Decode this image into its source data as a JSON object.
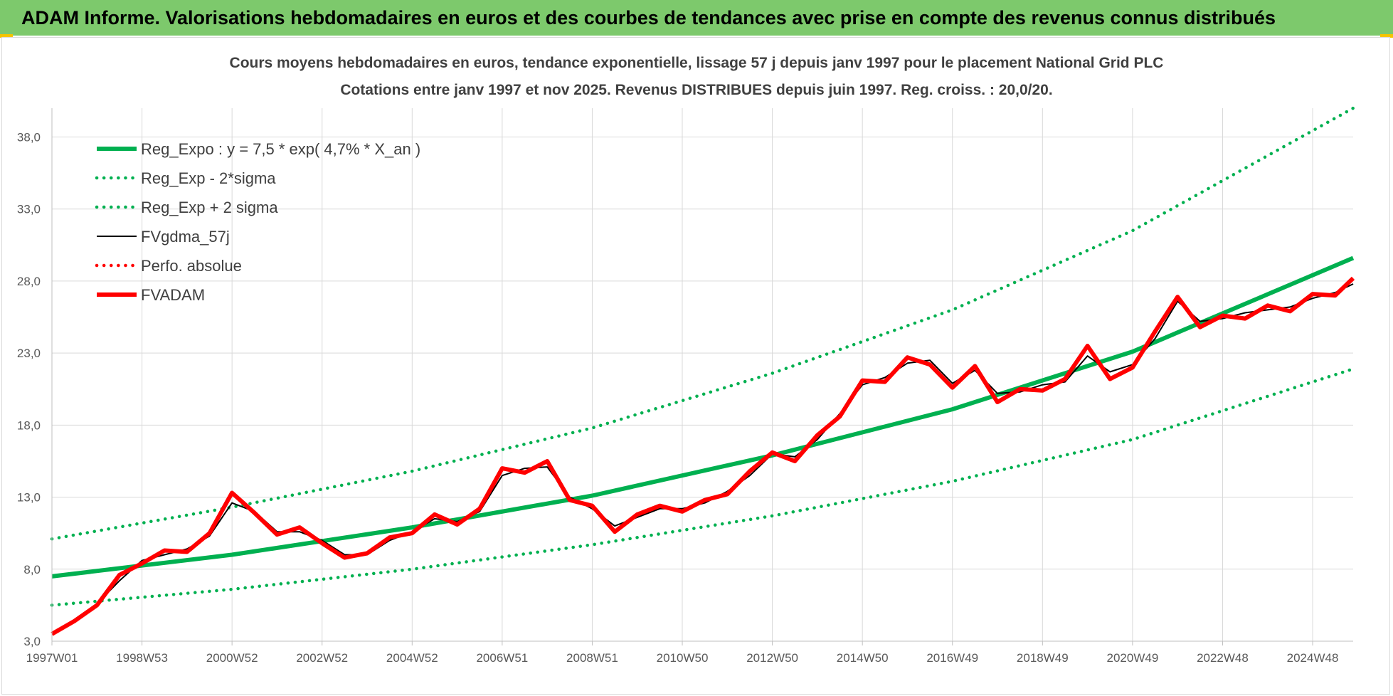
{
  "banner": {
    "title": "ADAM Informe. Valorisations hebdomadaires en euros et des courbes de tendances avec prise en compte des revenus connus distribués"
  },
  "colors": {
    "banner_bg": "#7dc96c",
    "trend_green": "#00b050",
    "fv_black": "#000000",
    "fvadam_red": "#ff0000",
    "gridline": "#d9d9d9",
    "axis_text": "#595959",
    "corner_accent": "#f5c400"
  },
  "chart_data": {
    "type": "line",
    "title": "Cours moyens hebdomadaires en euros, tendance exponentielle, lissage 57 j depuis janv 1997 pour le placement National Grid PLC",
    "subtitle": "Cotations entre janv 1997 et nov 2025. Revenus DISTRIBUES depuis juin 1997. Reg. croiss. : 20,0/20.",
    "xlabel": "",
    "ylabel": "",
    "x_range": [
      1997.0,
      2025.9
    ],
    "ylim": [
      3.0,
      40.0
    ],
    "y_ticks": [
      "3,0",
      "8,0",
      "13,0",
      "18,0",
      "23,0",
      "28,0",
      "33,0",
      "38,0"
    ],
    "y_tick_values": [
      3,
      8,
      13,
      18,
      23,
      28,
      33,
      38
    ],
    "x_tick_labels": [
      "1997W01",
      "1998W53",
      "2000W52",
      "2002W52",
      "2004W52",
      "2006W51",
      "2008W51",
      "2010W50",
      "2012W50",
      "2014W50",
      "2016W49",
      "2018W49",
      "2020W49",
      "2022W48",
      "2024W48"
    ],
    "x_tick_years": [
      1997.0,
      1999.0,
      2001.0,
      2003.0,
      2005.0,
      2007.0,
      2009.0,
      2011.0,
      2013.0,
      2015.0,
      2017.0,
      2019.0,
      2021.0,
      2023.0,
      2025.0
    ],
    "grid": true,
    "legend_position": "top-left",
    "series": [
      {
        "name": "Reg_Expo : y = 7,5 * exp( 4,7% *  X_an )",
        "style": "solid-thick",
        "color": "#00b050",
        "x": [
          1997.0,
          2001.0,
          2005.0,
          2009.0,
          2013.0,
          2017.0,
          2021.0,
          2025.9
        ],
        "values": [
          7.5,
          9.0,
          10.9,
          13.1,
          15.9,
          19.1,
          23.1,
          29.6
        ]
      },
      {
        "name": "Reg_Exp - 2*sigma",
        "style": "dotted",
        "color": "#00b050",
        "x": [
          1997.0,
          2001.0,
          2005.0,
          2009.0,
          2013.0,
          2017.0,
          2021.0,
          2025.9
        ],
        "values": [
          5.5,
          6.6,
          8.0,
          9.7,
          11.7,
          14.1,
          17.0,
          21.9
        ]
      },
      {
        "name": "Reg_Exp + 2 sigma",
        "style": "dotted",
        "color": "#00b050",
        "x": [
          1997.0,
          2001.0,
          2005.0,
          2009.0,
          2013.0,
          2017.0,
          2021.0,
          2025.9
        ],
        "values": [
          10.1,
          12.3,
          14.8,
          17.8,
          21.6,
          26.0,
          31.5,
          40.0
        ]
      },
      {
        "name": "FVgdma_57j",
        "style": "solid-thin",
        "color": "#000000",
        "x": [
          1997.0,
          1997.5,
          1998.0,
          1998.5,
          1999.0,
          1999.5,
          2000.0,
          2000.5,
          2001.0,
          2001.5,
          2002.0,
          2002.5,
          2003.0,
          2003.5,
          2004.0,
          2004.5,
          2005.0,
          2005.5,
          2006.0,
          2006.5,
          2007.0,
          2007.5,
          2008.0,
          2008.5,
          2009.0,
          2009.5,
          2010.0,
          2010.5,
          2011.0,
          2011.5,
          2012.0,
          2012.5,
          2013.0,
          2013.5,
          2014.0,
          2014.5,
          2015.0,
          2015.5,
          2016.0,
          2016.5,
          2017.0,
          2017.5,
          2018.0,
          2018.5,
          2019.0,
          2019.5,
          2020.0,
          2020.5,
          2021.0,
          2021.5,
          2022.0,
          2022.5,
          2023.0,
          2023.5,
          2024.0,
          2024.5,
          2025.0,
          2025.5,
          2025.9
        ],
        "values": [
          3.6,
          4.3,
          5.6,
          7.2,
          8.6,
          9.0,
          9.4,
          10.3,
          12.6,
          12.0,
          10.6,
          10.6,
          10.0,
          9.0,
          9.0,
          10.0,
          10.6,
          11.5,
          11.3,
          12.0,
          14.5,
          15.0,
          15.1,
          13.0,
          12.2,
          11.0,
          11.6,
          12.2,
          12.2,
          12.6,
          13.4,
          14.5,
          16.0,
          15.8,
          17.0,
          18.8,
          20.8,
          21.3,
          22.3,
          22.5,
          20.9,
          21.8,
          20.2,
          20.3,
          20.8,
          21.0,
          22.8,
          21.7,
          22.2,
          24.0,
          26.6,
          25.2,
          25.4,
          25.8,
          26.0,
          26.2,
          26.8,
          27.2,
          27.8
        ]
      },
      {
        "name": "Perfo. absolue",
        "style": "dotted",
        "color": "#ff0000",
        "x": [],
        "values": []
      },
      {
        "name": "FVADAM",
        "style": "solid-thick",
        "color": "#ff0000",
        "x": [
          1997.0,
          1997.5,
          1998.0,
          1998.5,
          1999.0,
          1999.5,
          2000.0,
          2000.5,
          2001.0,
          2001.5,
          2002.0,
          2002.5,
          2003.0,
          2003.5,
          2004.0,
          2004.5,
          2005.0,
          2005.5,
          2006.0,
          2006.5,
          2007.0,
          2007.5,
          2008.0,
          2008.5,
          2009.0,
          2009.5,
          2010.0,
          2010.5,
          2011.0,
          2011.5,
          2012.0,
          2012.5,
          2013.0,
          2013.5,
          2014.0,
          2014.5,
          2015.0,
          2015.5,
          2016.0,
          2016.5,
          2017.0,
          2017.5,
          2018.0,
          2018.5,
          2019.0,
          2019.5,
          2020.0,
          2020.5,
          2021.0,
          2021.5,
          2022.0,
          2022.5,
          2023.0,
          2023.5,
          2024.0,
          2024.5,
          2025.0,
          2025.5,
          2025.9
        ],
        "values": [
          3.5,
          4.4,
          5.5,
          7.6,
          8.4,
          9.3,
          9.2,
          10.5,
          13.3,
          11.9,
          10.4,
          10.9,
          9.8,
          8.8,
          9.1,
          10.2,
          10.5,
          11.8,
          11.1,
          12.2,
          15.0,
          14.7,
          15.5,
          12.8,
          12.4,
          10.6,
          11.8,
          12.4,
          12.0,
          12.8,
          13.2,
          14.8,
          16.1,
          15.5,
          17.3,
          18.6,
          21.1,
          21.0,
          22.7,
          22.2,
          20.6,
          22.1,
          19.6,
          20.5,
          20.4,
          21.2,
          23.5,
          21.2,
          22.0,
          24.5,
          26.9,
          24.8,
          25.6,
          25.4,
          26.3,
          25.9,
          27.1,
          27.0,
          28.2
        ]
      }
    ],
    "legend": [
      {
        "label": "Reg_Expo : y = 7,5 * exp( 4,7% *  X_an )",
        "style": "solid-thick",
        "color": "#00b050"
      },
      {
        "label": "Reg_Exp - 2*sigma",
        "style": "dotted",
        "color": "#00b050"
      },
      {
        "label": "Reg_Exp + 2 sigma",
        "style": "dotted",
        "color": "#00b050"
      },
      {
        "label": "FVgdma_57j",
        "style": "solid-thin",
        "color": "#000000"
      },
      {
        "label": "Perfo. absolue",
        "style": "dotted",
        "color": "#ff0000"
      },
      {
        "label": "FVADAM",
        "style": "solid-thick",
        "color": "#ff0000"
      }
    ]
  }
}
